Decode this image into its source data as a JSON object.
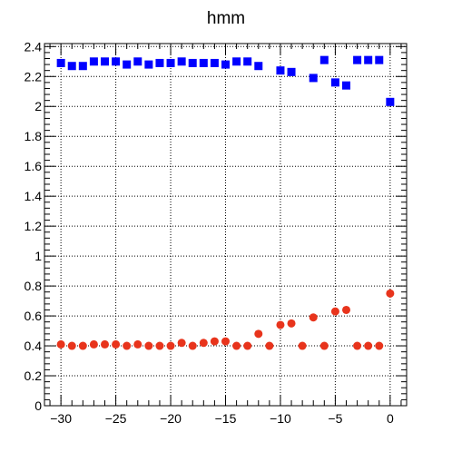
{
  "chart_data": {
    "type": "scatter",
    "title": "hmm",
    "xlabel": "",
    "ylabel": "",
    "xlim": [
      -31.5,
      1.5
    ],
    "ylim": [
      0,
      2.42
    ],
    "grid": true,
    "x_ticks": [
      -30,
      -25,
      -20,
      -15,
      -10,
      -5,
      0
    ],
    "x_tick_labels": [
      "−30",
      "−25",
      "−20",
      "−15",
      "−10",
      "−5",
      "0"
    ],
    "y_ticks": [
      0,
      0.2,
      0.4,
      0.6,
      0.8,
      1,
      1.2,
      1.4,
      1.6,
      1.8,
      2,
      2.2,
      2.4
    ],
    "y_tick_labels": [
      "0",
      "0.2",
      "0.4",
      "0.6",
      "0.8",
      "1",
      "1.2",
      "1.4",
      "1.6",
      "1.8",
      "2",
      "2.2",
      "2.4"
    ],
    "series": [
      {
        "marker": "square",
        "color": "#0000ff",
        "points": [
          [
            -30,
            2.29
          ],
          [
            -29,
            2.27
          ],
          [
            -28,
            2.27
          ],
          [
            -27,
            2.3
          ],
          [
            -26,
            2.3
          ],
          [
            -25,
            2.3
          ],
          [
            -24,
            2.28
          ],
          [
            -23,
            2.3
          ],
          [
            -22,
            2.28
          ],
          [
            -21,
            2.29
          ],
          [
            -20,
            2.29
          ],
          [
            -19,
            2.3
          ],
          [
            -18,
            2.29
          ],
          [
            -17,
            2.29
          ],
          [
            -16,
            2.29
          ],
          [
            -15,
            2.28
          ],
          [
            -14,
            2.3
          ],
          [
            -13,
            2.3
          ],
          [
            -12,
            2.27
          ],
          [
            -10,
            2.24
          ],
          [
            -9,
            2.23
          ],
          [
            -7,
            2.19
          ],
          [
            -6,
            2.31
          ],
          [
            -5,
            2.16
          ],
          [
            -4,
            2.14
          ],
          [
            -3,
            2.31
          ],
          [
            -2,
            2.31
          ],
          [
            -1,
            2.31
          ],
          [
            0,
            2.03
          ]
        ]
      },
      {
        "marker": "circle",
        "color": "#e8341c",
        "points": [
          [
            -30,
            0.41
          ],
          [
            -29,
            0.4
          ],
          [
            -28,
            0.4
          ],
          [
            -27,
            0.41
          ],
          [
            -26,
            0.41
          ],
          [
            -25,
            0.41
          ],
          [
            -24,
            0.4
          ],
          [
            -23,
            0.41
          ],
          [
            -22,
            0.4
          ],
          [
            -21,
            0.4
          ],
          [
            -20,
            0.4
          ],
          [
            -19,
            0.42
          ],
          [
            -18,
            0.4
          ],
          [
            -17,
            0.42
          ],
          [
            -16,
            0.43
          ],
          [
            -15,
            0.43
          ],
          [
            -14,
            0.4
          ],
          [
            -13,
            0.4
          ],
          [
            -12,
            0.48
          ],
          [
            -11,
            0.4
          ],
          [
            -10,
            0.54
          ],
          [
            -9,
            0.55
          ],
          [
            -8,
            0.4
          ],
          [
            -7,
            0.59
          ],
          [
            -6,
            0.4
          ],
          [
            -5,
            0.63
          ],
          [
            -4,
            0.64
          ],
          [
            -3,
            0.4
          ],
          [
            -2,
            0.4
          ],
          [
            -1,
            0.4
          ],
          [
            0,
            0.75
          ]
        ]
      }
    ]
  }
}
